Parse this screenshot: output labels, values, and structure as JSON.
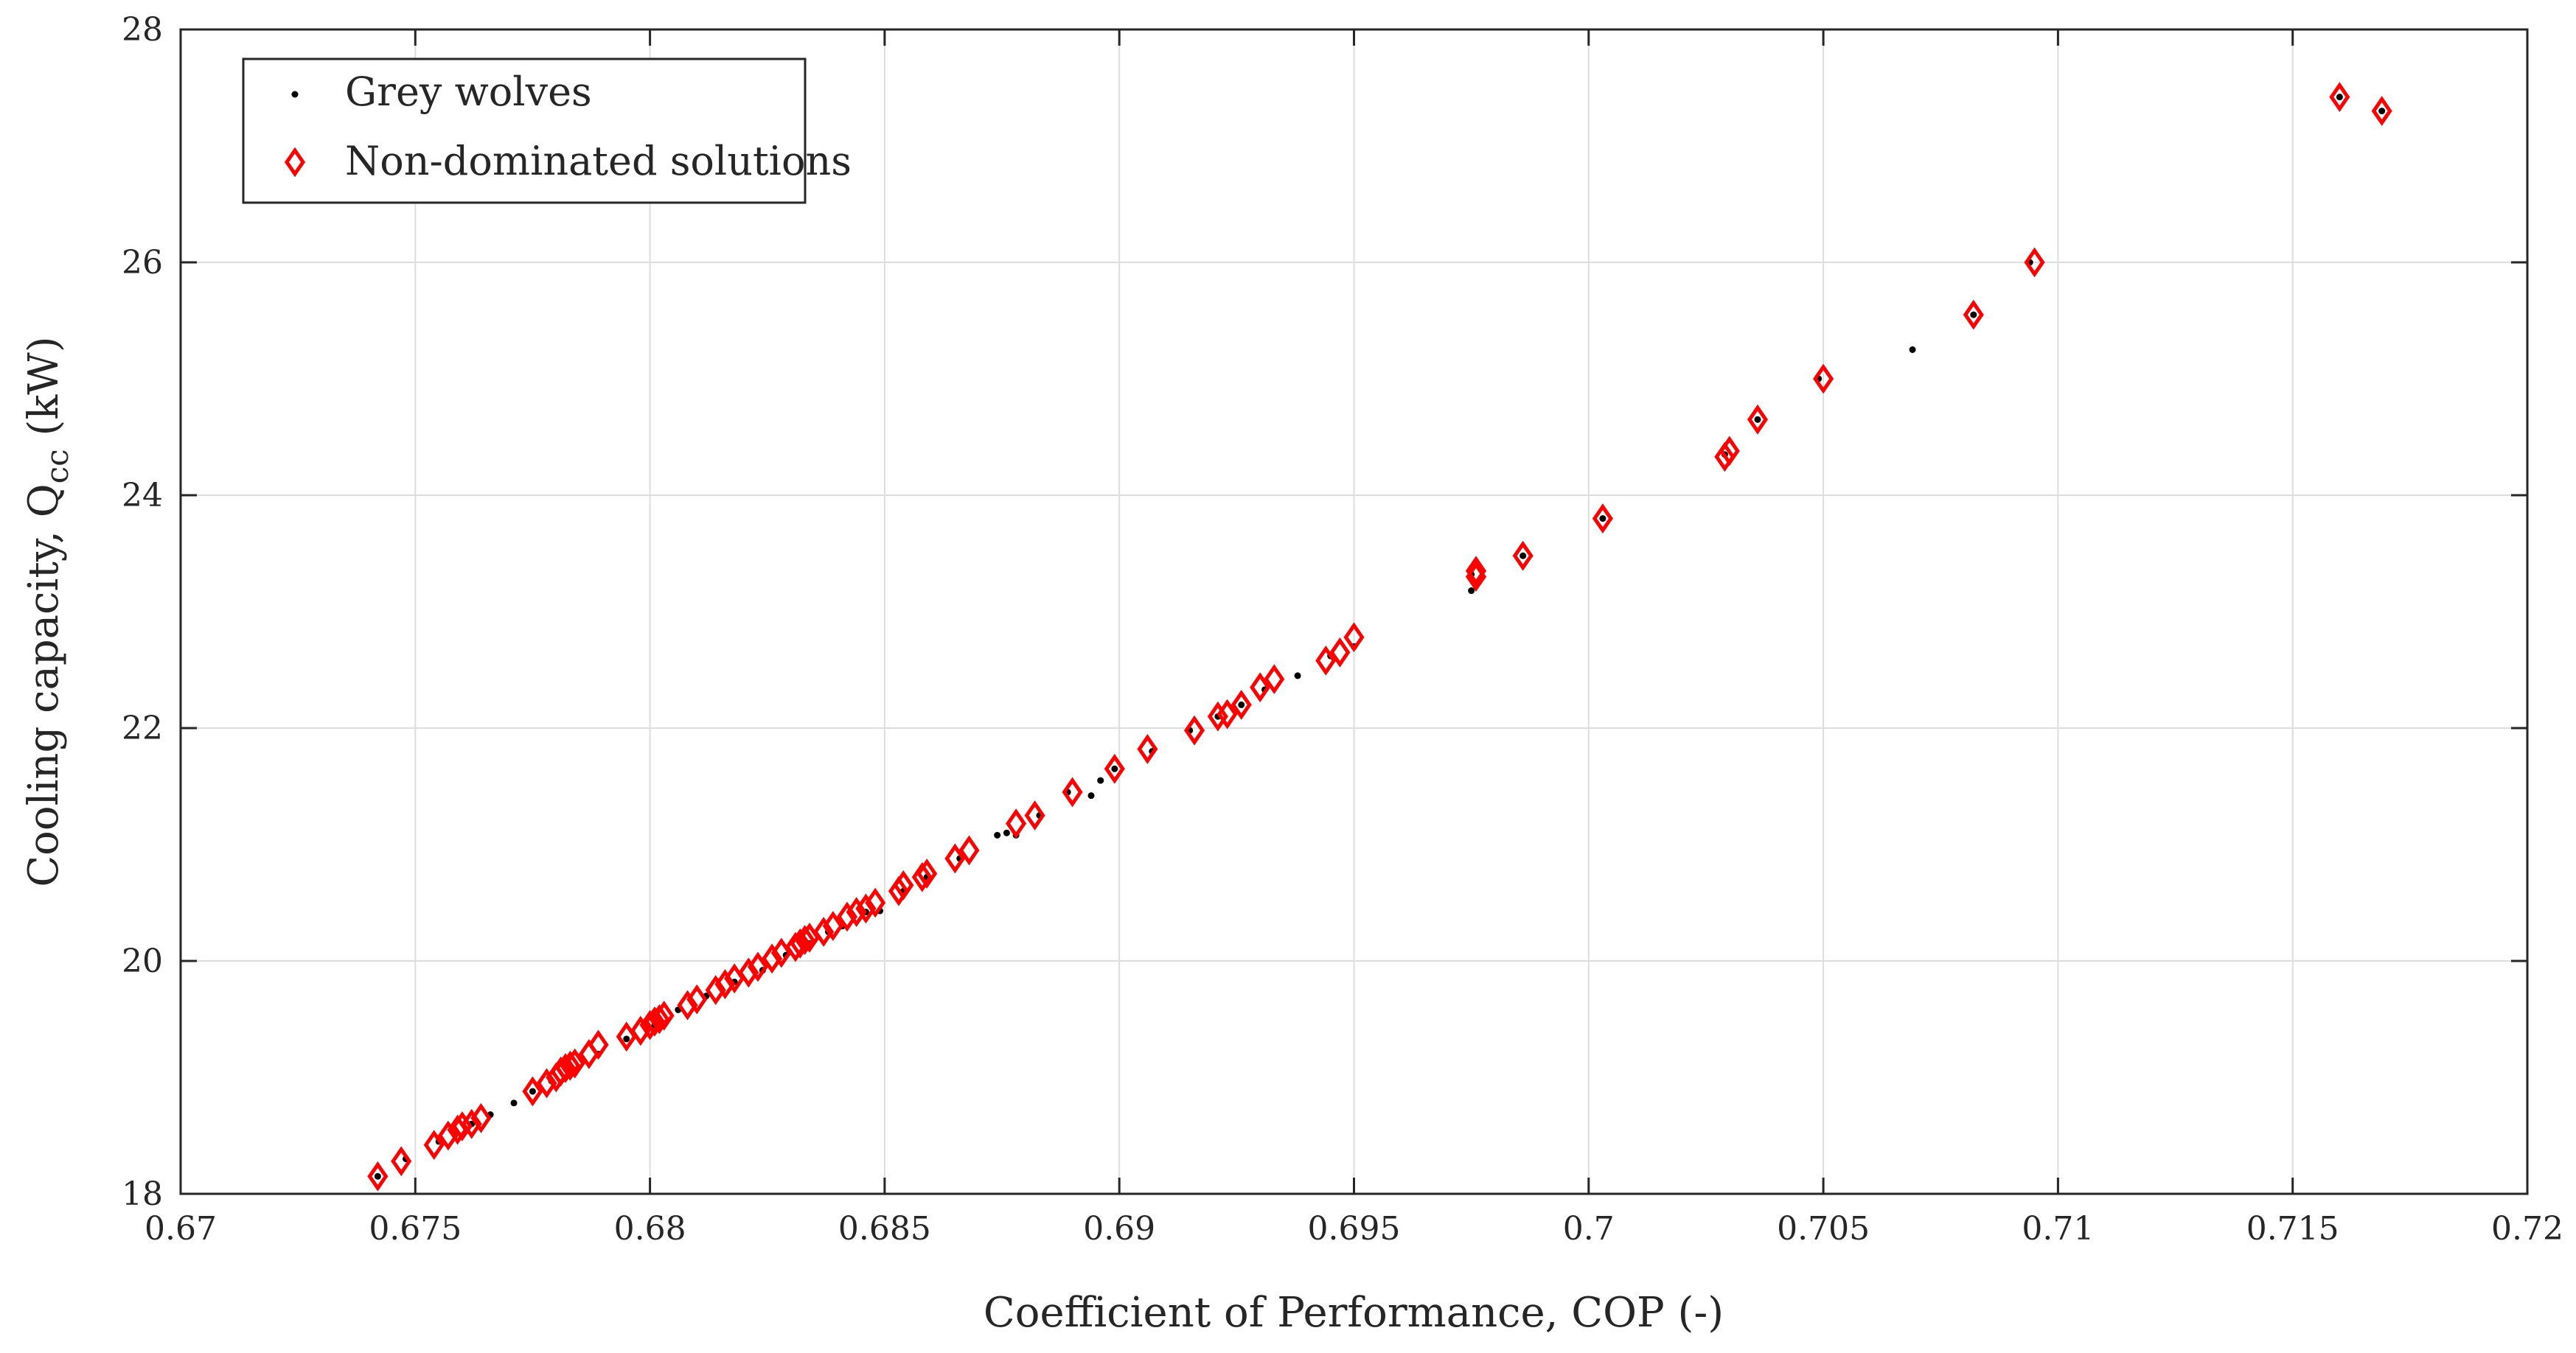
{
  "chart_data": {
    "type": "scatter",
    "title": "",
    "xlabel": "Coefficient of Performance, COP (-)",
    "ylabel_main": "Cooling capacity, Q",
    "ylabel_sub": "cc",
    "ylabel_unit": " (kW)",
    "xlim": [
      0.67,
      0.72
    ],
    "ylim": [
      18,
      28
    ],
    "x_ticks": [
      0.67,
      0.675,
      0.68,
      0.685,
      0.69,
      0.695,
      0.7,
      0.705,
      0.71,
      0.715,
      0.72
    ],
    "x_tick_labels": [
      "0.67",
      "0.675",
      "0.68",
      "0.685",
      "0.69",
      "0.695",
      "0.7",
      "0.705",
      "0.71",
      "0.715",
      "0.72"
    ],
    "y_ticks": [
      18,
      20,
      22,
      24,
      26,
      28
    ],
    "y_tick_labels": [
      "18",
      "20",
      "22",
      "24",
      "26",
      "28"
    ],
    "grid": true,
    "legend_position": "top-left",
    "colors": {
      "wolves": "#000000",
      "nondominated": "#ff0000",
      "grid": "#dddddd",
      "axis": "#262626"
    },
    "series": [
      {
        "name": "Grey wolves",
        "marker": "dot",
        "x": [
          0.6742,
          0.6748,
          0.6755,
          0.6762,
          0.6766,
          0.6771,
          0.6775,
          0.6779,
          0.6783,
          0.6789,
          0.6795,
          0.6801,
          0.6806,
          0.6812,
          0.6818,
          0.6824,
          0.6829,
          0.6834,
          0.6838,
          0.6841,
          0.6846,
          0.6849,
          0.6854,
          0.6859,
          0.6866,
          0.6874,
          0.6876,
          0.6878,
          0.6883,
          0.6889,
          0.6894,
          0.6896,
          0.6899,
          0.6907,
          0.6915,
          0.6921,
          0.6926,
          0.6931,
          0.6938,
          0.6945,
          0.695,
          0.6975,
          0.6975,
          0.6986,
          0.7003,
          0.7029,
          0.7036,
          0.7049,
          0.7069,
          0.7082,
          0.7094,
          0.716,
          0.7169
        ],
        "y": [
          18.15,
          18.3,
          18.45,
          18.6,
          18.68,
          18.78,
          18.88,
          18.97,
          19.05,
          19.2,
          19.33,
          19.45,
          19.58,
          19.7,
          19.82,
          19.92,
          20.05,
          20.15,
          20.25,
          20.3,
          20.42,
          20.43,
          20.6,
          20.72,
          20.88,
          21.08,
          21.1,
          21.08,
          21.25,
          21.45,
          21.42,
          21.55,
          21.65,
          21.8,
          21.98,
          22.1,
          22.2,
          22.33,
          22.45,
          22.62,
          22.7,
          23.32,
          23.18,
          23.48,
          23.8,
          24.35,
          24.65,
          25.0,
          25.25,
          25.55,
          26.0,
          27.42,
          27.3
        ]
      },
      {
        "name": "Non-dominated solutions",
        "marker": "diamond",
        "x": [
          0.6742,
          0.6747,
          0.6754,
          0.6757,
          0.6759,
          0.676,
          0.6762,
          0.6764,
          0.6775,
          0.6778,
          0.678,
          0.6781,
          0.6782,
          0.6783,
          0.6784,
          0.6787,
          0.6789,
          0.6795,
          0.6798,
          0.68,
          0.6801,
          0.6802,
          0.6803,
          0.6808,
          0.681,
          0.6814,
          0.6816,
          0.6818,
          0.6821,
          0.6823,
          0.6826,
          0.6828,
          0.6831,
          0.6832,
          0.6833,
          0.6834,
          0.6837,
          0.6839,
          0.6842,
          0.6844,
          0.6846,
          0.6848,
          0.6853,
          0.6854,
          0.6858,
          0.6859,
          0.6865,
          0.6868,
          0.6878,
          0.6882,
          0.689,
          0.6899,
          0.6906,
          0.6916,
          0.6921,
          0.6923,
          0.6926,
          0.693,
          0.6933,
          0.6944,
          0.6947,
          0.695,
          0.6976,
          0.6976,
          0.6986,
          0.7003,
          0.7029,
          0.703,
          0.7036,
          0.705,
          0.7082,
          0.7095,
          0.716,
          0.7169
        ],
        "y": [
          18.15,
          18.28,
          18.42,
          18.5,
          18.55,
          18.58,
          18.6,
          18.65,
          18.88,
          18.95,
          19.0,
          19.05,
          19.08,
          19.1,
          19.12,
          19.2,
          19.28,
          19.35,
          19.4,
          19.45,
          19.48,
          19.5,
          19.53,
          19.62,
          19.67,
          19.75,
          19.8,
          19.85,
          19.9,
          19.95,
          20.02,
          20.07,
          20.12,
          20.15,
          20.18,
          20.2,
          20.25,
          20.3,
          20.38,
          20.42,
          20.45,
          20.5,
          20.6,
          20.65,
          20.72,
          20.75,
          20.88,
          20.95,
          21.18,
          21.25,
          21.45,
          21.65,
          21.82,
          21.98,
          22.1,
          22.12,
          22.2,
          22.35,
          22.42,
          22.58,
          22.65,
          22.78,
          23.3,
          23.35,
          23.48,
          23.8,
          24.33,
          24.38,
          24.65,
          25.0,
          25.55,
          26.0,
          27.42,
          27.3
        ]
      }
    ]
  }
}
